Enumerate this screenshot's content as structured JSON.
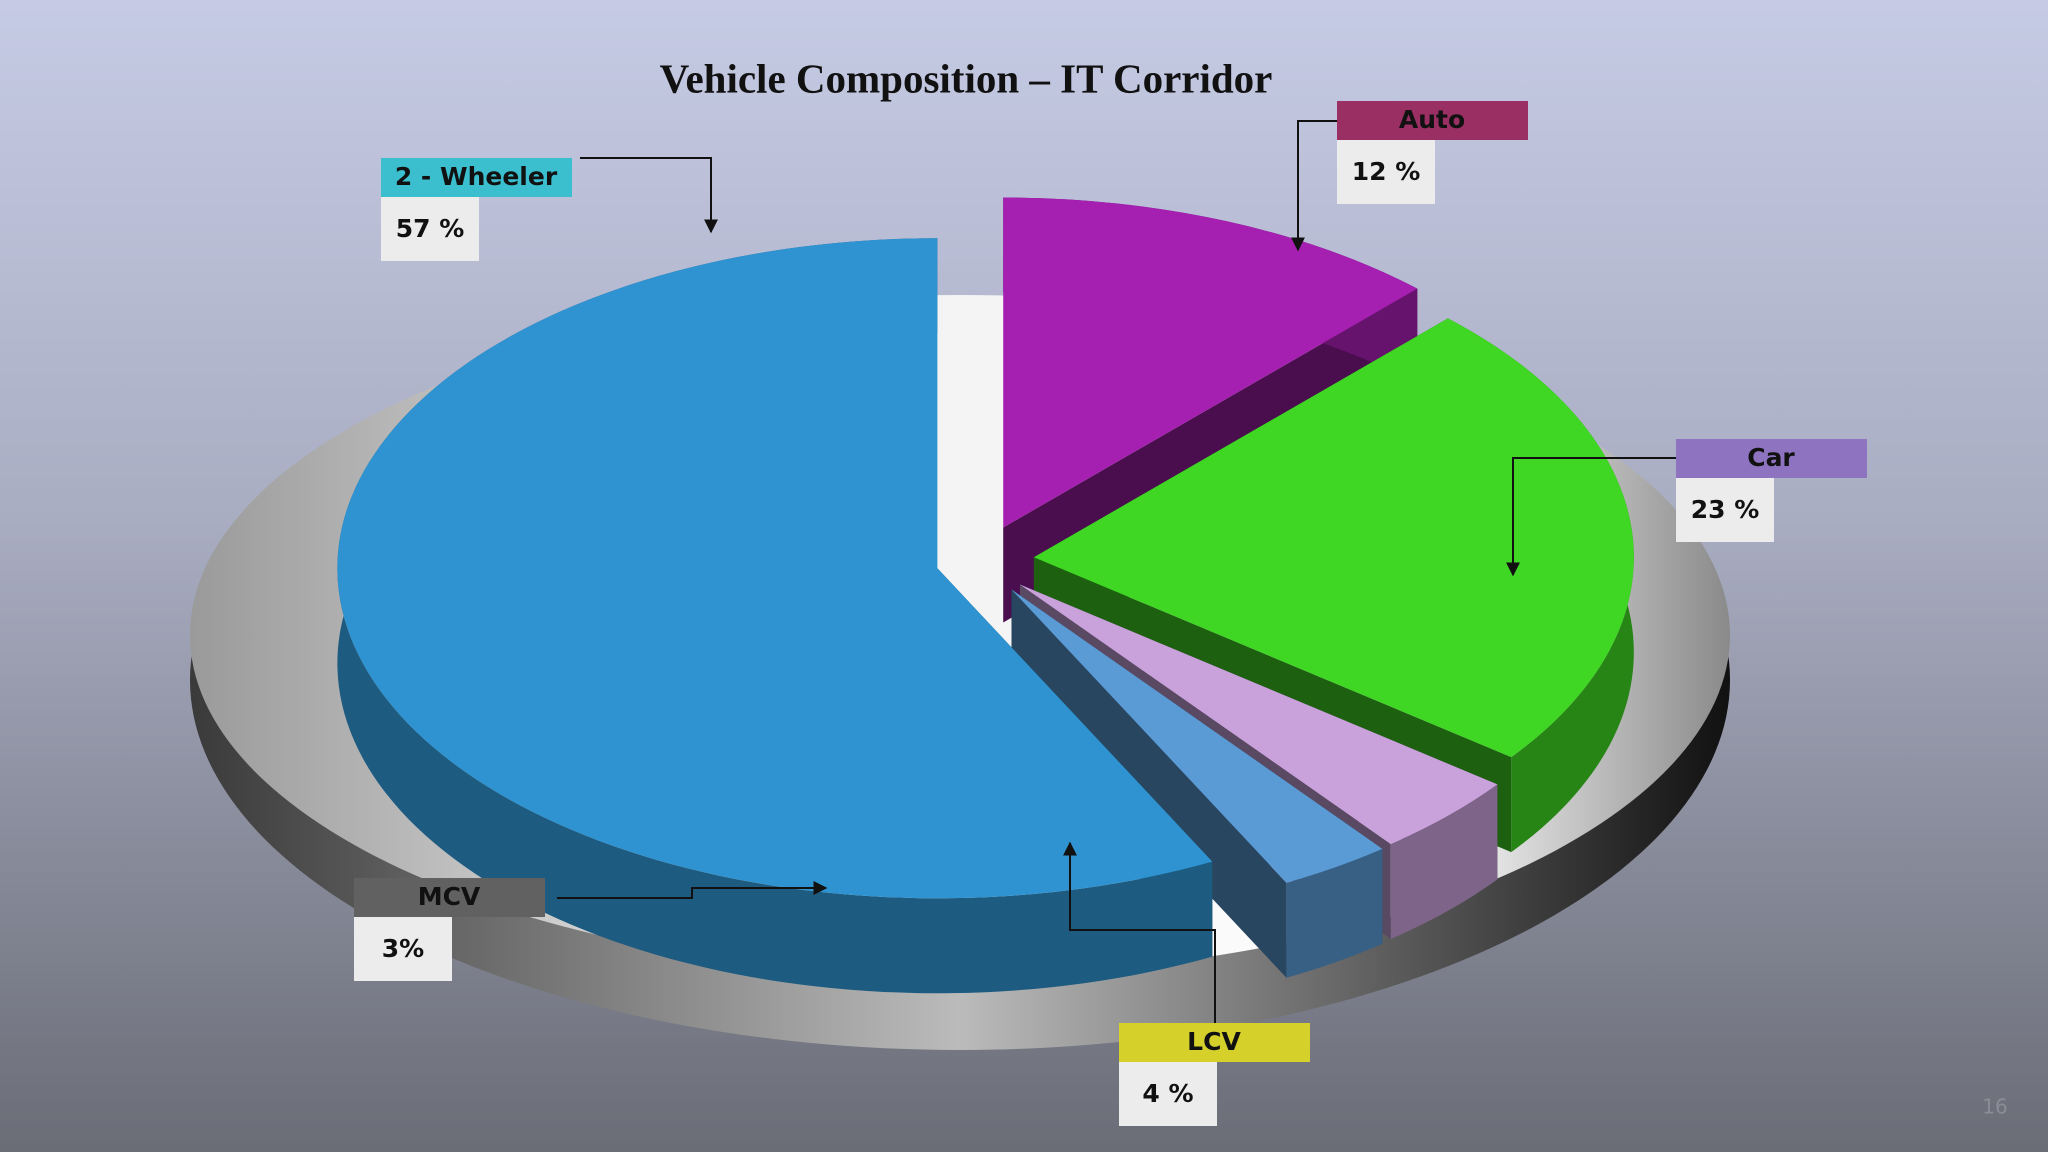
{
  "chart_data": {
    "type": "pie",
    "title": "Vehicle Composition – IT Corridor",
    "categories": [
      "Auto",
      "Car",
      "LCV",
      "MCV",
      "2 - Wheeler"
    ],
    "values": [
      12,
      23,
      4,
      3,
      57
    ],
    "value_labels": [
      "12 %",
      "23 %",
      "4 %",
      "3%",
      "57 %"
    ],
    "colors": [
      "#a51fb0",
      "#3fd624",
      "#c9a2dc",
      "#5b9bd5",
      "#2e93d0"
    ],
    "label_colors": [
      "#992f63",
      "#8e73c1",
      "#d6d02a",
      "#616161",
      "#3bbfcf"
    ]
  },
  "page_number": "16"
}
